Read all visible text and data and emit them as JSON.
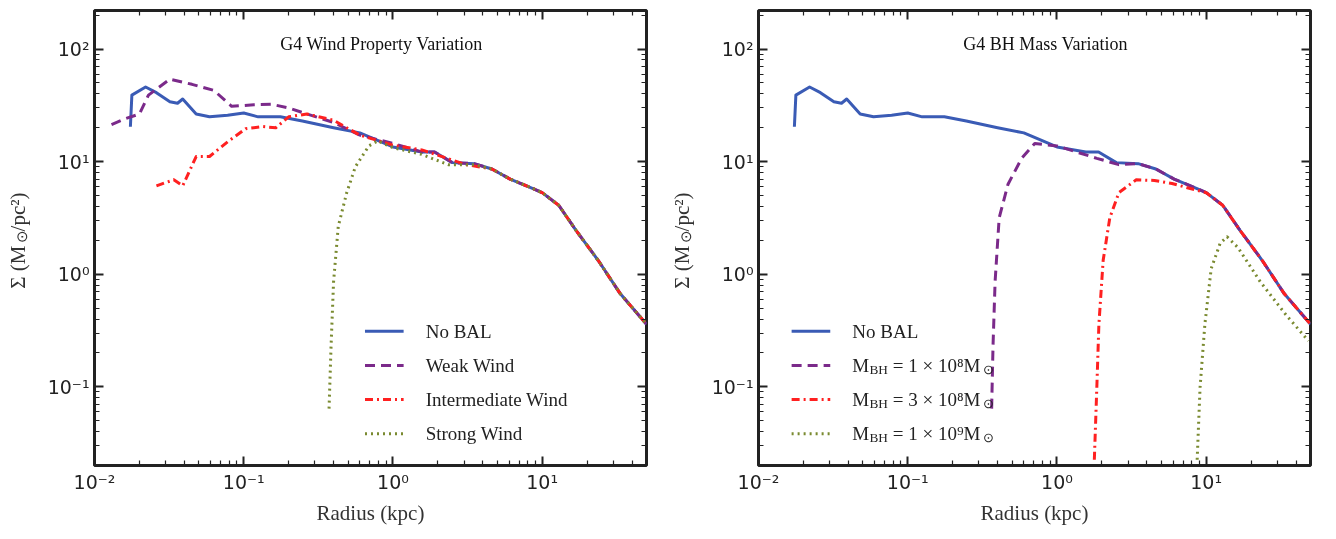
{
  "chart_data": [
    {
      "type": "line",
      "title": "G4 Wind Property Variation",
      "xlabel": "Radius (kpc)",
      "ylabel": "Σ (M$_{⊙}$/pc²)",
      "log": "xy",
      "grid": false,
      "legend": "bottom right",
      "xlim": [
        0.01,
        50
      ],
      "ylim": [
        0.02,
        220
      ],
      "xticks": [
        {
          "value": 0.01,
          "label": "10⁻²"
        },
        {
          "value": 0.1,
          "label": "10⁻¹"
        },
        {
          "value": 1,
          "label": "10⁰"
        },
        {
          "value": 10,
          "label": "10¹"
        }
      ],
      "yticks": [
        {
          "value": 0.1,
          "label": "10⁻¹"
        },
        {
          "value": 1,
          "label": "10⁰"
        },
        {
          "value": 10,
          "label": "10¹"
        },
        {
          "value": 100,
          "label": "10²"
        }
      ],
      "series": [
        {
          "name": "No BAL",
          "color": "#3a5bb5",
          "line_style": "solid",
          "x": [
            0.0174,
            0.0178,
            0.022,
            0.026,
            0.032,
            0.036,
            0.039,
            0.048,
            0.059,
            0.078,
            0.1,
            0.125,
            0.176,
            0.247,
            0.4,
            0.6,
            1.0,
            1.56,
            1.9,
            2.5,
            3.5,
            4.6,
            6.1,
            8.6,
            10,
            12.9,
            16.9,
            23.7,
            33.4,
            50
          ],
          "values": [
            20.4,
            39,
            46,
            41,
            34,
            33,
            36,
            26.5,
            25,
            25.8,
            27,
            25,
            25,
            23,
            20,
            18,
            13.5,
            12.2,
            12.2,
            9.8,
            9.6,
            8.6,
            7.0,
            5.8,
            5.3,
            4.1,
            2.44,
            1.33,
            0.67,
            0.36
          ]
        },
        {
          "name": "Weak Wind",
          "color": "#7b2a8a",
          "line_style": "dashed",
          "x": [
            0.013,
            0.016,
            0.02,
            0.023,
            0.032,
            0.045,
            0.063,
            0.083,
            0.117,
            0.154,
            0.2,
            0.265,
            0.4,
            0.6,
            1.0,
            1.56,
            1.9,
            2.5,
            3.5,
            4.6,
            6.1,
            8.6,
            10,
            12.9,
            16.9,
            23.7,
            33.4,
            50
          ],
          "values": [
            21.3,
            24,
            26.5,
            39,
            54,
            48.6,
            43,
            31,
            32,
            32.3,
            30,
            26.5,
            22.3,
            17.2,
            14.5,
            12.2,
            12.2,
            9.8,
            9.6,
            8.6,
            7.0,
            5.8,
            5.3,
            4.1,
            2.44,
            1.33,
            0.67,
            0.36
          ]
        },
        {
          "name": "Intermediate Wind",
          "color": "#ff2020",
          "line_style": "dashdot",
          "x": [
            0.026,
            0.034,
            0.039,
            0.048,
            0.059,
            0.078,
            0.103,
            0.134,
            0.164,
            0.2,
            0.265,
            0.4,
            0.6,
            1.0,
            1.56,
            3.1,
            4.6,
            6.1,
            8.6,
            10,
            12.9,
            16.9,
            23.7,
            33.4,
            50
          ],
          "values": [
            6.1,
            6.9,
            6.1,
            11.1,
            11.1,
            15,
            19.6,
            20.5,
            20,
            25,
            26.5,
            23.3,
            17.2,
            14,
            12.7,
            9.4,
            8.6,
            7.0,
            5.8,
            5.3,
            4.1,
            2.44,
            1.33,
            0.67,
            0.36
          ]
        },
        {
          "name": "Strong Wind",
          "color": "#7a8a30",
          "line_style": "dotted",
          "x": [
            0.373,
            0.385,
            0.4,
            0.43,
            0.49,
            0.56,
            0.69,
            0.79,
            1.0,
            1.56,
            2.34,
            3.5,
            4.6,
            6.1,
            8.6,
            10,
            12.9,
            16.9,
            23.7,
            33.4,
            50
          ],
          "values": [
            0.064,
            0.235,
            0.86,
            2.66,
            5.3,
            9,
            13.8,
            15.3,
            13.3,
            11.6,
            9.4,
            9.4,
            8.6,
            7.0,
            5.8,
            5.3,
            4.1,
            2.44,
            1.33,
            0.67,
            0.36
          ]
        }
      ]
    },
    {
      "type": "line",
      "title": "G4 BH Mass Variation",
      "xlabel": "Radius (kpc)",
      "ylabel": "Σ (M$_{⊙}$/pc²)",
      "log": "xy",
      "grid": false,
      "legend": "bottom left",
      "xlim": [
        0.01,
        50
      ],
      "ylim": [
        0.02,
        220
      ],
      "xticks": [
        {
          "value": 0.01,
          "label": "10⁻²"
        },
        {
          "value": 0.1,
          "label": "10⁻¹"
        },
        {
          "value": 1,
          "label": "10⁰"
        },
        {
          "value": 10,
          "label": "10¹"
        }
      ],
      "yticks": [
        {
          "value": 0.1,
          "label": "10⁻¹"
        },
        {
          "value": 1,
          "label": "10⁰"
        },
        {
          "value": 10,
          "label": "10¹"
        },
        {
          "value": 100,
          "label": "10²"
        }
      ],
      "series": [
        {
          "name": "No BAL",
          "color": "#3a5bb5",
          "line_style": "solid",
          "x": [
            0.0174,
            0.0178,
            0.022,
            0.026,
            0.032,
            0.036,
            0.039,
            0.048,
            0.059,
            0.078,
            0.1,
            0.125,
            0.176,
            0.247,
            0.4,
            0.6,
            1.0,
            1.56,
            1.9,
            2.5,
            3.5,
            4.6,
            6.1,
            8.6,
            10,
            12.9,
            16.9,
            23.7,
            33.4,
            50
          ],
          "values": [
            20.4,
            39,
            46,
            41,
            34,
            33,
            36,
            26.5,
            25,
            25.8,
            27,
            25,
            25,
            23,
            20,
            18,
            13.5,
            12.2,
            12.2,
            9.8,
            9.6,
            8.6,
            7.0,
            5.8,
            5.3,
            4.1,
            2.44,
            1.33,
            0.67,
            0.36
          ]
        },
        {
          "name": "M$_{BH}$ = 1 × 10⁸M$_{⊙}$",
          "color": "#7b2a8a",
          "line_style": "dashed",
          "x": [
            0.365,
            0.373,
            0.385,
            0.41,
            0.47,
            0.58,
            0.71,
            1.0,
            1.85,
            2.6,
            3.5,
            4.6,
            6.1,
            8.6,
            10,
            12.9,
            16.9,
            23.7,
            33.4,
            50
          ],
          "values": [
            0.064,
            0.235,
            0.86,
            3.17,
            6.3,
            10.7,
            14.5,
            13.8,
            10.7,
            9.4,
            9.6,
            8.6,
            7.0,
            5.8,
            5.3,
            4.1,
            2.44,
            1.33,
            0.67,
            0.36
          ]
        },
        {
          "name": "M$_{BH}$ = 3 × 10⁸M$_{⊙}$",
          "color": "#ff2020",
          "line_style": "dashdot",
          "x": [
            1.78,
            1.85,
            1.91,
            2.04,
            2.26,
            2.6,
            3.4,
            4.5,
            5.9,
            7.7,
            10,
            12.9,
            16.9,
            23.7,
            33.4,
            50
          ],
          "values": [
            0.0225,
            0.099,
            0.36,
            1.33,
            3.17,
            5.3,
            6.9,
            6.8,
            6.4,
            5.8,
            5.3,
            4.1,
            2.44,
            1.33,
            0.67,
            0.36
          ]
        },
        {
          "name": "M$_{BH}$ = 1 × 10⁹M$_{⊙}$",
          "color": "#7a8a30",
          "line_style": "dotted",
          "x": [
            8.7,
            9.1,
            9.8,
            10.8,
            12.4,
            13.8,
            16.3,
            23,
            34.5,
            48.5
          ],
          "values": [
            0.0225,
            0.099,
            0.36,
            1.12,
            1.88,
            2.15,
            1.73,
            0.86,
            0.43,
            0.256
          ]
        }
      ]
    }
  ]
}
